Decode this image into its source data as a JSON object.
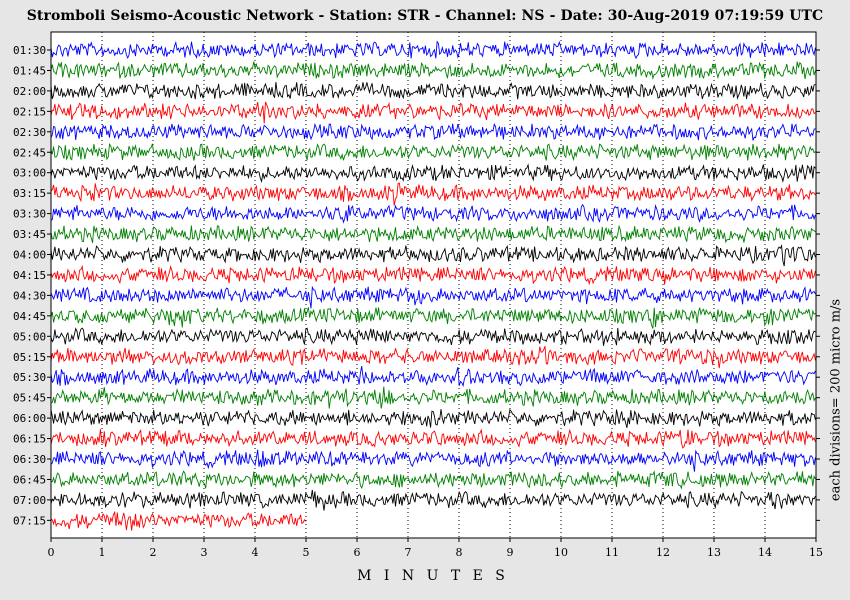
{
  "title": "Stromboli Seismo-Acoustic Network - Station: STR - Channel: NS - Date: 30-Aug-2019 07:19:59 UTC",
  "scale_note": "each divisions= 200 micro m/s",
  "colors": {
    "background": "#e6e6e6",
    "plot_bg": "#ffffff",
    "trace_cycle": [
      "#0000ff",
      "#008000",
      "#000000",
      "#ff0000"
    ]
  },
  "chart_data": {
    "type": "line",
    "title": "Stromboli Seismo-Acoustic Network - Station: STR - Channel: NS - Date: 30-Aug-2019 07:19:59 UTC",
    "xlabel": "M I N U T E S",
    "ylabel": "",
    "x_unit": "minutes",
    "xlim": [
      0,
      15
    ],
    "x_ticks": [
      0,
      1,
      2,
      3,
      4,
      5,
      6,
      7,
      8,
      9,
      10,
      11,
      12,
      13,
      14,
      15
    ],
    "grid": true,
    "legend": "none",
    "series": [
      {
        "label": "01:30",
        "color": "#0000ff",
        "end_minute": 15
      },
      {
        "label": "01:45",
        "color": "#008000",
        "end_minute": 15
      },
      {
        "label": "02:00",
        "color": "#000000",
        "end_minute": 15
      },
      {
        "label": "02:15",
        "color": "#ff0000",
        "end_minute": 15
      },
      {
        "label": "02:30",
        "color": "#0000ff",
        "end_minute": 15
      },
      {
        "label": "02:45",
        "color": "#008000",
        "end_minute": 15
      },
      {
        "label": "03:00",
        "color": "#000000",
        "end_minute": 15
      },
      {
        "label": "03:15",
        "color": "#ff0000",
        "end_minute": 15
      },
      {
        "label": "03:30",
        "color": "#0000ff",
        "end_minute": 15
      },
      {
        "label": "03:45",
        "color": "#008000",
        "end_minute": 15
      },
      {
        "label": "04:00",
        "color": "#000000",
        "end_minute": 15
      },
      {
        "label": "04:15",
        "color": "#ff0000",
        "end_minute": 15
      },
      {
        "label": "04:30",
        "color": "#0000ff",
        "end_minute": 15
      },
      {
        "label": "04:45",
        "color": "#008000",
        "end_minute": 15
      },
      {
        "label": "05:00",
        "color": "#000000",
        "end_minute": 15
      },
      {
        "label": "05:15",
        "color": "#ff0000",
        "end_minute": 15
      },
      {
        "label": "05:30",
        "color": "#0000ff",
        "end_minute": 15
      },
      {
        "label": "05:45",
        "color": "#008000",
        "end_minute": 15
      },
      {
        "label": "06:00",
        "color": "#000000",
        "end_minute": 15
      },
      {
        "label": "06:15",
        "color": "#ff0000",
        "end_minute": 15
      },
      {
        "label": "06:30",
        "color": "#0000ff",
        "end_minute": 15
      },
      {
        "label": "06:45",
        "color": "#008000",
        "end_minute": 15
      },
      {
        "label": "07:00",
        "color": "#000000",
        "end_minute": 15
      },
      {
        "label": "07:15",
        "color": "#ff0000",
        "end_minute": 5
      }
    ]
  }
}
